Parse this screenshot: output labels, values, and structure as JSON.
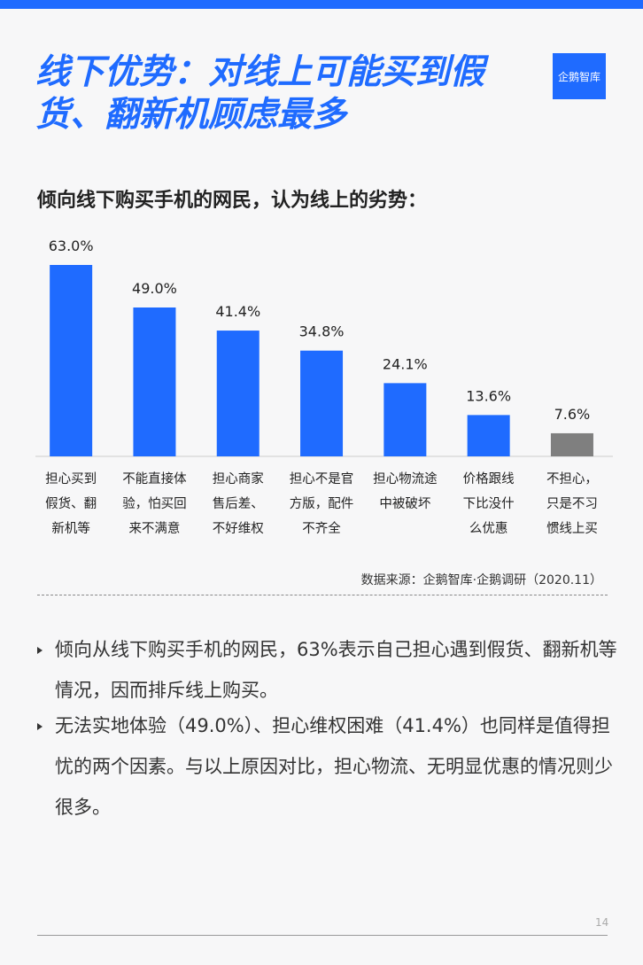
{
  "header": {
    "title": "线下优势：对线上可能买到假货、翻新机顾虑最多",
    "logo": "企鹅智库"
  },
  "chart_data": {
    "type": "bar",
    "title": "倾向线下购买手机的网民，认为线上的劣势：",
    "categories": [
      "担心买到\n假货、翻\n新机等",
      "不能直接体\n验，怕买回\n来不满意",
      "担心商家\n售后差、\n不好维权",
      "担心不是官\n方版，配件\n不齐全",
      "担心物流途\n中被破坏",
      "价格跟线\n下比没什\n么优惠",
      "不担心，\n只是不习\n惯线上买"
    ],
    "values": [
      63.0,
      49.0,
      41.4,
      34.8,
      24.1,
      13.6,
      7.6
    ],
    "value_labels": [
      "63.0%",
      "49.0%",
      "41.4%",
      "34.8%",
      "24.1%",
      "13.6%",
      "7.6%"
    ],
    "colors": [
      "#1f6bff",
      "#1f6bff",
      "#1f6bff",
      "#1f6bff",
      "#1f6bff",
      "#1f6bff",
      "#7f7f7f"
    ],
    "source": "数据来源：企鹅智库·企鹅调研（2020.11）"
  },
  "bullets": [
    "倾向从线下购买手机的网民，63%表示自己担心遇到假货、翻新机等情况，因而排斥线上购买。",
    "无法实地体验（49.0%）、担心维权困难（41.4%）也同样是值得担忧的两个因素。与以上原因对比，担心物流、无明显优惠的情况则少很多。"
  ],
  "page_number": "14"
}
